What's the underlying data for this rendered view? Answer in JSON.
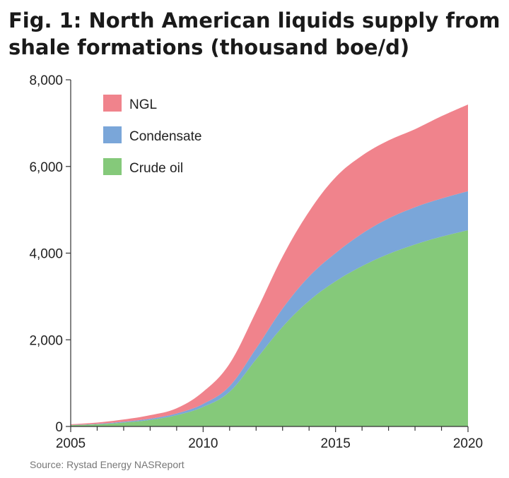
{
  "title_lines": [
    "Fig. 1: North American liquids supply from",
    "shale formations (thousand boe/d)"
  ],
  "source": "Source:  Rystad Energy NASReport",
  "chart_data": {
    "type": "area",
    "stacked": true,
    "x": [
      2005,
      2006,
      2007,
      2008,
      2009,
      2010,
      2011,
      2012,
      2013,
      2014,
      2015,
      2016,
      2017,
      2018,
      2019,
      2020
    ],
    "series": [
      {
        "name": "Crude oil",
        "color": "#85c97a",
        "values": [
          30,
          50,
          90,
          150,
          260,
          450,
          800,
          1550,
          2300,
          2900,
          3350,
          3700,
          3980,
          4200,
          4380,
          4530
        ]
      },
      {
        "name": "Condensate",
        "color": "#7aa6d9",
        "values": [
          5,
          10,
          20,
          30,
          40,
          70,
          130,
          250,
          420,
          560,
          650,
          750,
          820,
          860,
          880,
          900
        ]
      },
      {
        "name": "NGL",
        "color": "#f0838c",
        "values": [
          15,
          30,
          50,
          80,
          120,
          280,
          520,
          850,
          1200,
          1500,
          1750,
          1800,
          1800,
          1800,
          1900,
          2000
        ]
      }
    ],
    "legend_order": [
      "NGL",
      "Condensate",
      "Crude oil"
    ],
    "legend_position": "top-left",
    "x_ticks": [
      2005,
      2010,
      2015,
      2020
    ],
    "x_tick_labels": [
      "2005",
      "2010",
      "2015",
      "2020"
    ],
    "y_ticks": [
      0,
      2000,
      4000,
      6000,
      8000
    ],
    "y_tick_labels": [
      "0",
      "2,000",
      "4,000",
      "6,000",
      "8,000"
    ],
    "xlim": [
      2005,
      2020
    ],
    "ylim": [
      0,
      8000
    ],
    "grid": false
  }
}
